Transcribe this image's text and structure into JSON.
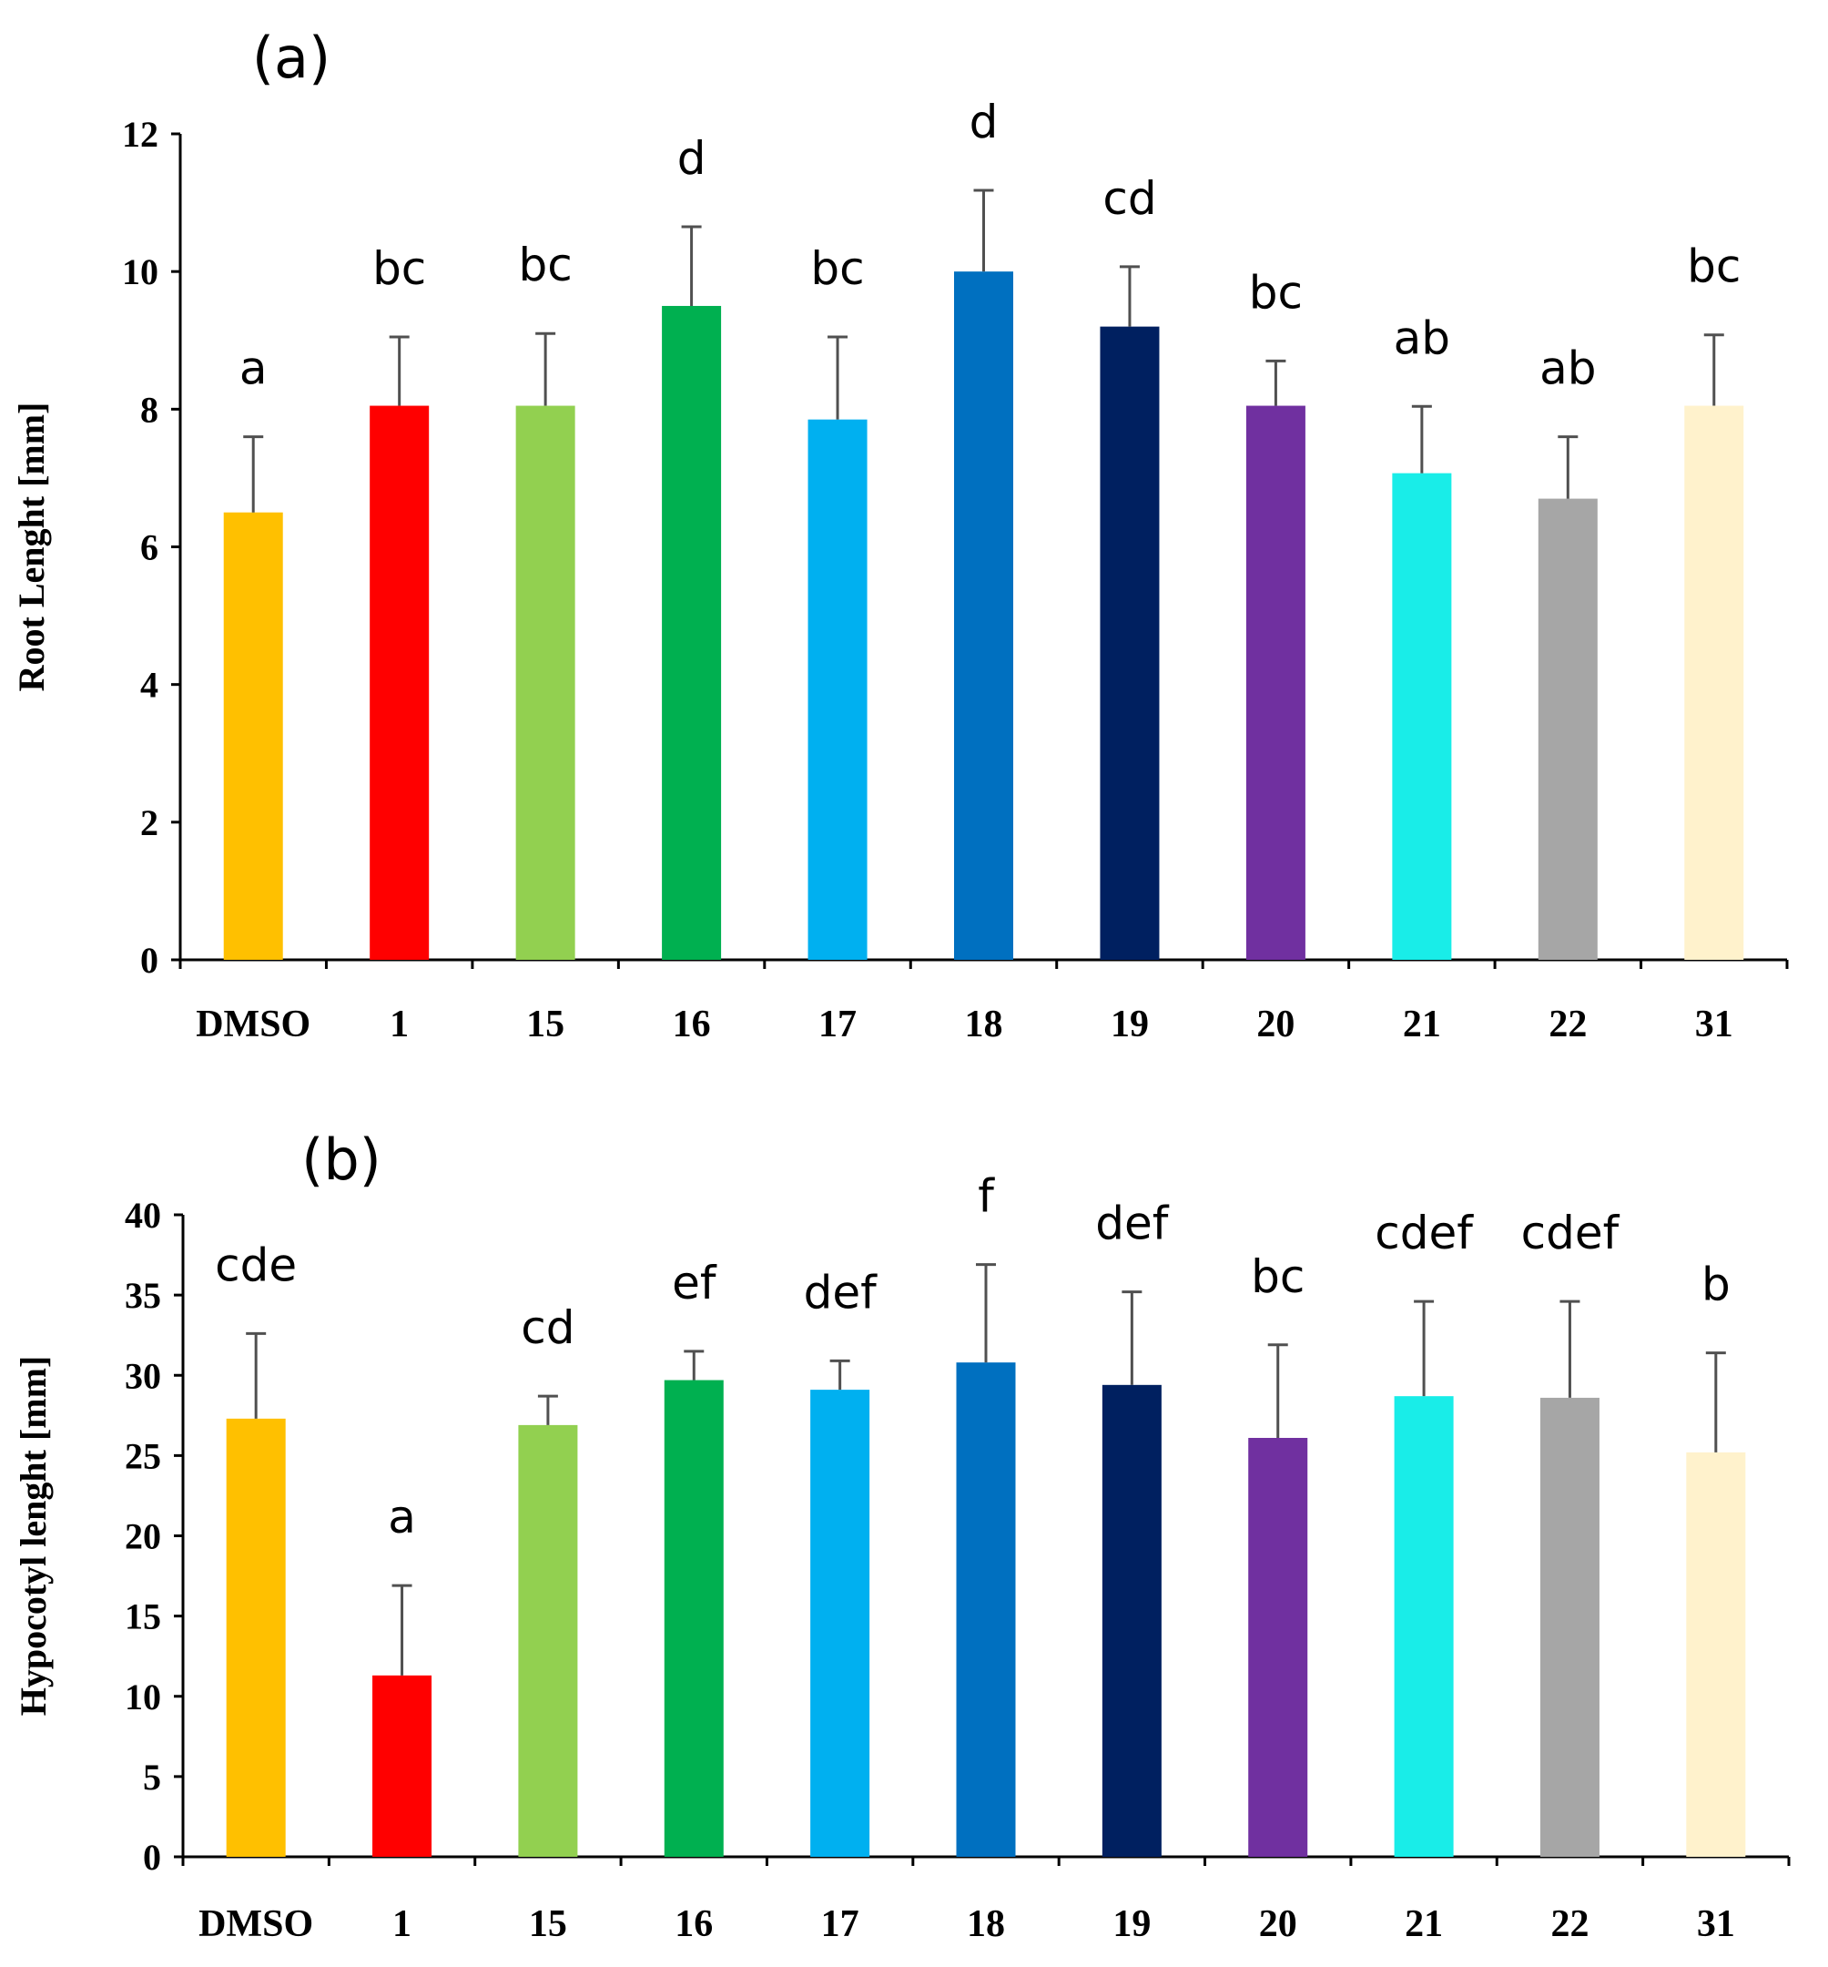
{
  "chart_data": [
    {
      "type": "bar",
      "panel_label": "(a)",
      "ylabel": "Root Lenght [mm]",
      "xlabel": "",
      "ylim": [
        0,
        12
      ],
      "y_ticks": [
        0,
        2,
        4,
        6,
        8,
        10,
        12
      ],
      "categories": [
        "DMSO",
        "1",
        "15",
        "16",
        "17",
        "18",
        "19",
        "20",
        "21",
        "22",
        "31"
      ],
      "values": [
        6.5,
        8.05,
        8.05,
        9.5,
        7.85,
        10.0,
        9.2,
        8.05,
        7.07,
        6.7,
        8.05
      ],
      "errors": [
        1.1,
        1.0,
        1.05,
        1.15,
        1.2,
        1.18,
        0.87,
        0.65,
        0.97,
        0.9,
        1.03
      ],
      "significance": [
        "a",
        "bc",
        "bc",
        "d",
        "bc",
        "d",
        "cd",
        "bc",
        "ab",
        "ab",
        "bc"
      ],
      "colors": [
        "#FFC000",
        "#FF0000",
        "#92D050",
        "#00B050",
        "#00B0F0",
        "#0070C0",
        "#002060",
        "#7030A0",
        "#19EDE8",
        "#A6A6A6",
        "#FFF2CC"
      ],
      "grid": false
    },
    {
      "type": "bar",
      "panel_label": "(b)",
      "ylabel": "Hypocotyl lenght [mm]",
      "xlabel": "",
      "ylim": [
        0,
        40
      ],
      "y_ticks": [
        0,
        5,
        10,
        15,
        20,
        25,
        30,
        35,
        40
      ],
      "categories": [
        "DMSO",
        "1",
        "15",
        "16",
        "17",
        "18",
        "19",
        "20",
        "21",
        "22",
        "31"
      ],
      "values": [
        27.3,
        11.3,
        26.9,
        29.7,
        29.1,
        30.8,
        29.4,
        26.1,
        28.7,
        28.6,
        25.2
      ],
      "errors": [
        5.3,
        5.6,
        1.8,
        1.8,
        1.8,
        6.1,
        5.8,
        5.8,
        5.9,
        6.0,
        6.2
      ],
      "significance": [
        "cde",
        "a",
        "cd",
        "ef",
        "def",
        "f",
        "def",
        "bc",
        "cdef",
        "cdef",
        "b"
      ],
      "colors": [
        "#FFC000",
        "#FF0000",
        "#92D050",
        "#00B050",
        "#00B0F0",
        "#0070C0",
        "#002060",
        "#7030A0",
        "#19EDE8",
        "#A6A6A6",
        "#FFF2CC"
      ],
      "grid": false
    }
  ]
}
